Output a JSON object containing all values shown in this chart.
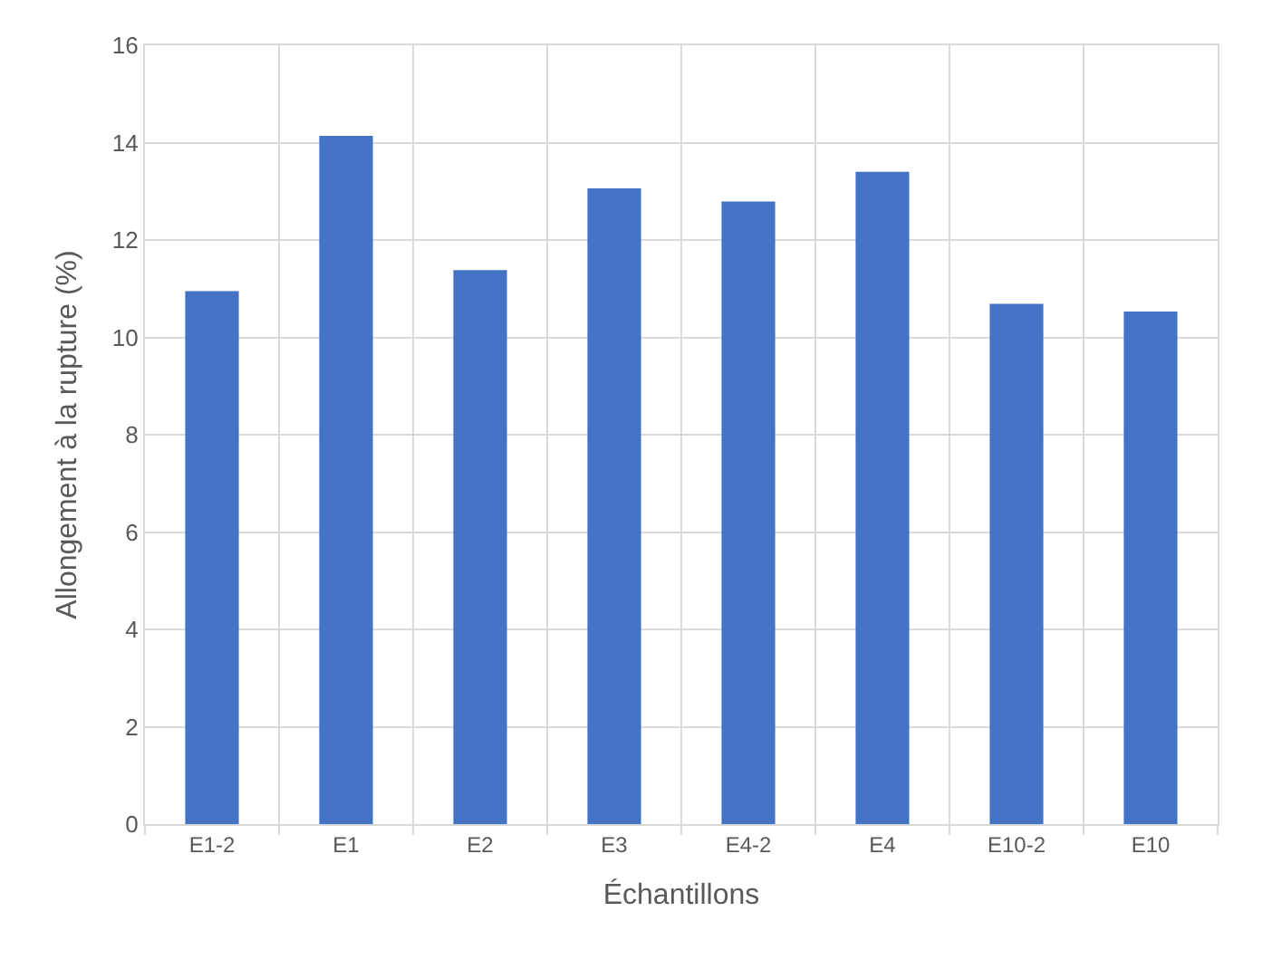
{
  "chart_data": {
    "type": "bar",
    "xlabel": "Échantillons",
    "ylabel": "Allongement à la rupture (%)",
    "categories": [
      "E1-2",
      "E1",
      "E2",
      "E3",
      "E4-2",
      "E4",
      "E10-2",
      "E10"
    ],
    "values": [
      10.95,
      14.14,
      11.38,
      13.06,
      12.79,
      13.4,
      10.69,
      10.53
    ],
    "color": "#4472c4",
    "ylim": [
      0,
      16
    ],
    "yticks": [
      0,
      2,
      4,
      6,
      8,
      10,
      12,
      14,
      16
    ],
    "grid": true
  }
}
